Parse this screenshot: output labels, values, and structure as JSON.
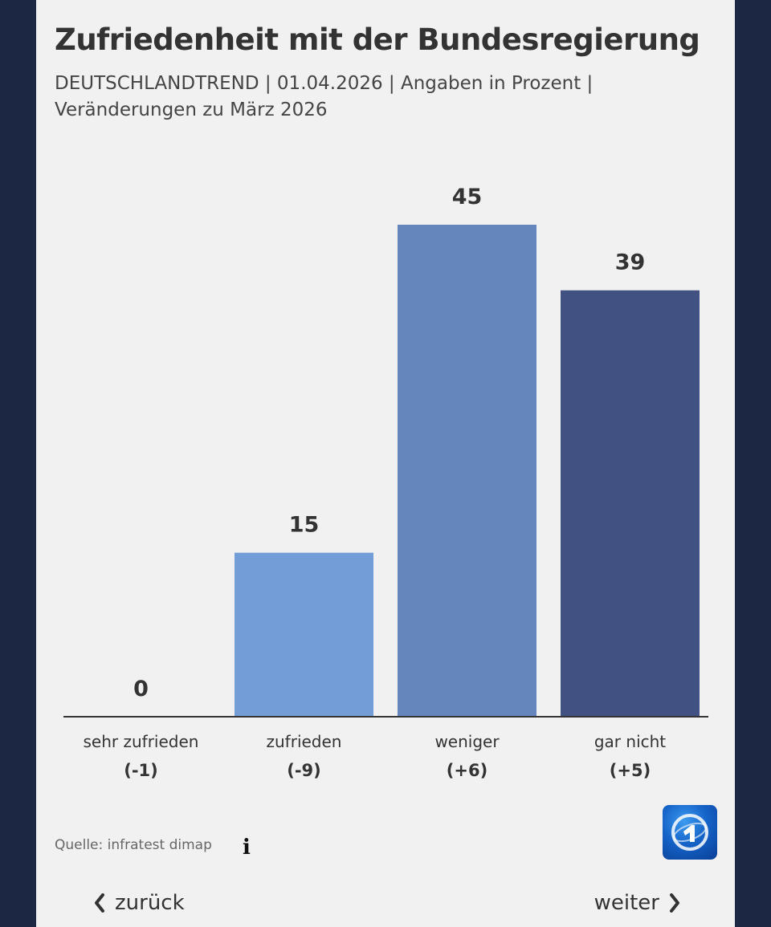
{
  "title": "Zufriedenheit mit der Bundesregierung",
  "subtitle": "DEUTSCHLANDTREND | 01.04.2026 | Angaben in Prozent | Veränderungen zu März 2026",
  "source": "Quelle: infratest dimap",
  "nav": {
    "back": "zurück",
    "next": "weiter"
  },
  "icons": {
    "info": "info-icon",
    "back": "chevron-left-icon",
    "next": "chevron-right-icon",
    "logo": "tagesschau-logo"
  },
  "info_glyph": "i",
  "chart_data": {
    "type": "bar",
    "title": "Zufriedenheit mit der Bundesregierung",
    "categories": [
      "sehr zufrieden",
      "zufrieden",
      "weniger",
      "gar nicht"
    ],
    "values": [
      0,
      15,
      45,
      39
    ],
    "changes": [
      "(-1)",
      "(-9)",
      "(+6)",
      "(+5)"
    ],
    "colors": [
      "#7aa5dc",
      "#739dd6",
      "#6586bc",
      "#415282"
    ],
    "ylim": [
      0,
      45
    ],
    "grid": false,
    "legend": "none",
    "xlabel": "",
    "ylabel": ""
  }
}
